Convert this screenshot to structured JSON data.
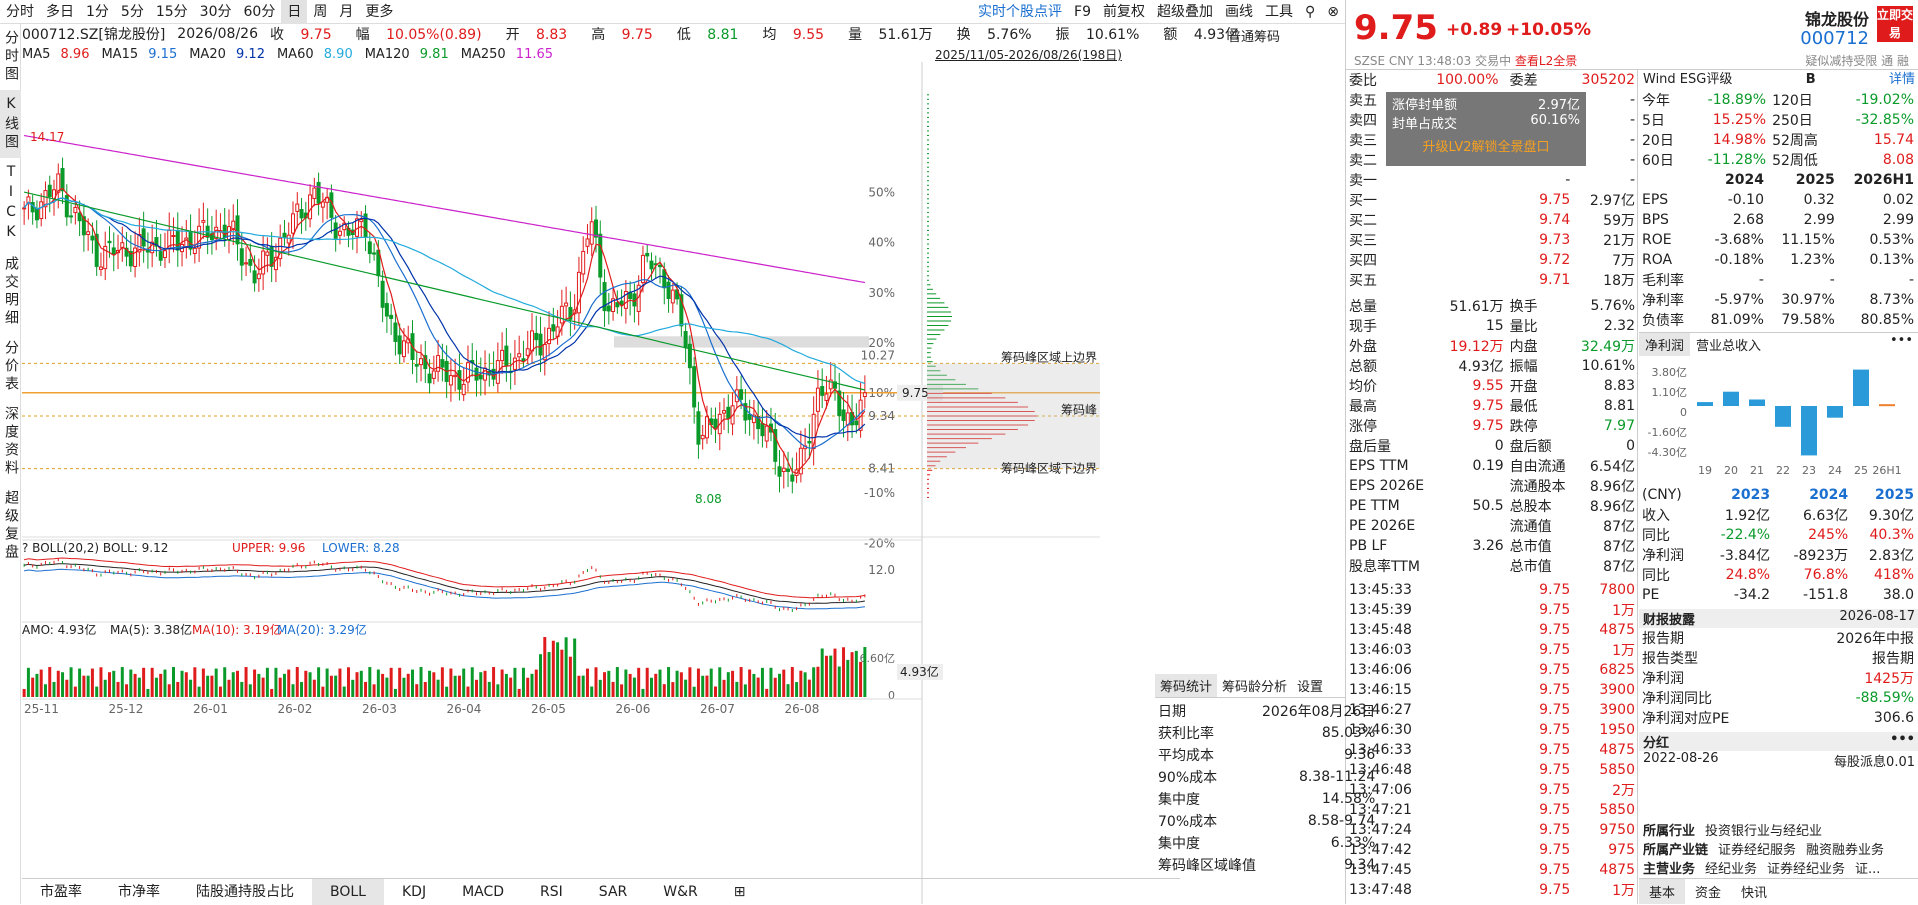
{
  "toolbar": {
    "items": [
      "分时",
      "多日",
      "1分",
      "5分",
      "15分",
      "30分",
      "60分",
      "日",
      "周",
      "月",
      "更多"
    ],
    "active": "日",
    "right": [
      "实时个股点评",
      "F9",
      "前复权",
      "超级叠加",
      "画线",
      "工具"
    ]
  },
  "lefttabs": [
    "分时图",
    "K线图",
    "TICK",
    "成交明细",
    "分价表",
    "深度资料",
    "超级复盘"
  ],
  "info": {
    "code": "000712.SZ[锦龙股份]",
    "date": "2026/08/26",
    "close_label": "收",
    "close": "9.75",
    "range_label": "幅",
    "range": "10.05%(0.89)",
    "open_label": "开",
    "open": "8.83",
    "high_label": "高",
    "high": "9.75",
    "low_label": "低",
    "low": "8.81",
    "avg_label": "均",
    "avg": "9.55",
    "vol_label": "量",
    "vol": "51.61万",
    "turn_label": "换",
    "turn": "5.76%",
    "amp_label": "振",
    "amp": "10.61%",
    "amt_label": "额",
    "amt": "4.93亿"
  },
  "ma": [
    {
      "name": "MA5",
      "value": "8.96",
      "color": "#e01b1b"
    },
    {
      "name": "MA15",
      "value": "9.15",
      "color": "#1a6fd0"
    },
    {
      "name": "MA20",
      "value": "9.12",
      "color": "#0033aa"
    },
    {
      "name": "MA60",
      "value": "8.90",
      "color": "#22aadd"
    },
    {
      "name": "MA120",
      "value": "9.81",
      "color": "#0a9a2a"
    },
    {
      "name": "MA250",
      "value": "11.65",
      "color": "#cc22cc"
    }
  ],
  "range_text": "2025/11/05-2026/08/26(198日)",
  "chip_title": "普通筹码",
  "price_axis": [
    "50%",
    "40%",
    "30%",
    "20%",
    "10%",
    "-10%",
    "-20%"
  ],
  "price_labels": {
    "current": "9.75",
    "p1027": "10.27",
    "p934": "9.34",
    "p841": "8.41",
    "high": "14.17",
    "low": "8.08"
  },
  "chip_labels": [
    "筹码峰区域上边界",
    "筹码峰",
    "筹码峰区域下边界"
  ],
  "boll": {
    "title": "BOLL(20,2)",
    "mid": "BOLL: 9.12",
    "upper": "UPPER: 9.96",
    "lower": "LOWER: 8.28",
    "axis": "12.0"
  },
  "amo": {
    "title": "AMO: 4.93亿",
    "ma5": "MA(5): 3.38亿",
    "ma10": "MA(10): 3.19亿",
    "ma20": "MA(20): 3.29亿",
    "axis_top": "6.60亿",
    "axis_cur": "4.93亿",
    "axis_zero": "0"
  },
  "xaxis": [
    "25-11",
    "25-12",
    "26-01",
    "26-02",
    "26-03",
    "26-04",
    "26-05",
    "26-06",
    "26-07",
    "26-08"
  ],
  "bottom_tabs": [
    "市盈率",
    "市净率",
    "陆股通持股占比",
    "BOLL",
    "KDJ",
    "MACD",
    "RSI",
    "SAR",
    "W&R"
  ],
  "bottom_active": "BOLL",
  "chip_tabs": [
    "筹码统计",
    "筹码龄分析",
    "设置"
  ],
  "chip_stats": [
    [
      "日期",
      "2026年08月26日"
    ],
    [
      "获利比率",
      "85.03%"
    ],
    [
      "平均成本",
      "9.36"
    ],
    [
      "90%成本",
      "8.38-11.24"
    ],
    [
      "集中度",
      "14.58%"
    ],
    [
      "70%成本",
      "8.58-9.74"
    ],
    [
      "集中度",
      "6.33%"
    ],
    [
      "筹码峰区域峰值",
      "9.34"
    ]
  ],
  "right": {
    "name": "锦龙股份",
    "code": "000712",
    "trade_btn": "立即交易",
    "price": "9.75",
    "chg": "+0.89",
    "pct": "+10.05%",
    "exch": "SZSE",
    "cur": "CNY",
    "time": "13:48:03",
    "status": "交易中",
    "l2": "查看L2全景",
    "tags": "疑似减持受限 通 融",
    "webi": "委比",
    "webi_v": "100.00%",
    "weicha": "委差",
    "weicha_v": "305202",
    "sells": [
      [
        "卖五",
        "-",
        "-"
      ],
      [
        "卖四",
        "-",
        "-"
      ],
      [
        "卖三",
        "-",
        "-"
      ],
      [
        "卖二",
        "-",
        "-"
      ],
      [
        "卖一",
        "-",
        "-"
      ]
    ],
    "limit_box": [
      [
        "涨停封单额",
        "2.97亿"
      ],
      [
        "封单占成交",
        "60.16%"
      ]
    ],
    "limit_btn": "升级LV2解锁全景盘口",
    "buys": [
      [
        "买一",
        "9.75",
        "2.97亿"
      ],
      [
        "买二",
        "9.74",
        "59万"
      ],
      [
        "买三",
        "9.73",
        "21万"
      ],
      [
        "买四",
        "9.72",
        "7万"
      ],
      [
        "买五",
        "9.71",
        "18万"
      ]
    ],
    "stats": [
      [
        "总量",
        "51.61万",
        "换手",
        "5.76%"
      ],
      [
        "现手",
        "15",
        "量比",
        "2.32"
      ],
      [
        "外盘",
        "19.12万",
        "内盘",
        "32.49万"
      ],
      [
        "总额",
        "4.93亿",
        "振幅",
        "10.61%"
      ],
      [
        "均价",
        "9.55",
        "开盘",
        "8.83"
      ],
      [
        "最高",
        "9.75",
        "最低",
        "8.81"
      ],
      [
        "涨停",
        "9.75",
        "跌停",
        "7.97"
      ],
      [
        "盘后量",
        "0",
        "盘后额",
        "0"
      ],
      [
        "EPS TTM",
        "0.19",
        "自由流通",
        "6.54亿"
      ],
      [
        "EPS 2026E",
        "",
        "流通股本",
        "8.96亿"
      ],
      [
        "PE TTM",
        "50.5",
        "总股本",
        "8.96亿"
      ],
      [
        "PE 2026E",
        "",
        "流通值",
        "87亿"
      ],
      [
        "PB LF",
        "3.26",
        "总市值",
        "87亿"
      ],
      [
        "股息率TTM",
        "",
        "总市值",
        "87亿"
      ]
    ],
    "ticks": [
      [
        "13:45:33",
        "9.75",
        "7800"
      ],
      [
        "13:45:39",
        "9.75",
        "1万"
      ],
      [
        "13:45:48",
        "9.75",
        "4875"
      ],
      [
        "13:46:03",
        "9.75",
        "1万"
      ],
      [
        "13:46:06",
        "9.75",
        "6825"
      ],
      [
        "13:46:15",
        "9.75",
        "3900"
      ],
      [
        "13:46:27",
        "9.75",
        "3900"
      ],
      [
        "13:46:30",
        "9.75",
        "1950"
      ],
      [
        "13:46:33",
        "9.75",
        "4875"
      ],
      [
        "13:46:48",
        "9.75",
        "5850"
      ],
      [
        "13:47:06",
        "9.75",
        "2万"
      ],
      [
        "13:47:21",
        "9.75",
        "5850"
      ],
      [
        "13:47:24",
        "9.75",
        "9750"
      ],
      [
        "13:47:42",
        "9.75",
        "975"
      ],
      [
        "13:47:45",
        "9.75",
        "4875"
      ],
      [
        "13:47:48",
        "9.75",
        "1万"
      ]
    ],
    "wind_label": "Wind ESG评级",
    "wind_grade": "B",
    "detail": "详情",
    "perf": [
      [
        "今年",
        "-18.89%",
        "120日",
        "-19.02%"
      ],
      [
        "5日",
        "15.25%",
        "250日",
        "-32.85%"
      ],
      [
        "20日",
        "14.98%",
        "52周高",
        "15.74"
      ],
      [
        "60日",
        "-11.28%",
        "52周低",
        "8.08"
      ]
    ],
    "fin_years": [
      "2024",
      "2025",
      "2026H1"
    ],
    "fin": [
      [
        "EPS",
        "-0.10",
        "0.32",
        "0.02"
      ],
      [
        "BPS",
        "2.68",
        "2.99",
        "2.99"
      ],
      [
        "ROE",
        "-3.68%",
        "11.15%",
        "0.53%"
      ],
      [
        "ROA",
        "-0.18%",
        "1.23%",
        "0.13%"
      ],
      [
        "毛利率",
        "-",
        "-",
        "-"
      ],
      [
        "净利率",
        "-5.97%",
        "30.97%",
        "8.73%"
      ],
      [
        "负债率",
        "81.09%",
        "79.58%",
        "80.85%"
      ]
    ],
    "mini_tabs": [
      "净利润",
      "营业总收入"
    ],
    "mini_axis": [
      "3.80亿",
      "1.10亿",
      "0",
      "-1.60亿",
      "-4.30亿"
    ],
    "mini_x": [
      "19",
      "20",
      "21",
      "22",
      "23",
      "24",
      "25",
      "26H1"
    ],
    "mini_values": [
      0.3,
      1.1,
      0.5,
      -1.6,
      -3.8,
      -0.9,
      2.8,
      0.14
    ],
    "cny_years": [
      "2023",
      "2024",
      "2025"
    ],
    "cny": [
      [
        "收入",
        "1.92亿",
        "6.63亿",
        "9.30亿"
      ],
      [
        "同比",
        "-22.4%",
        "245%",
        "40.3%"
      ],
      [
        "净利润",
        "-3.84亿",
        "-8923万",
        "2.83亿"
      ],
      [
        "同比",
        "24.8%",
        "76.8%",
        "418%"
      ],
      [
        "PE",
        "-34.2",
        "-151.8",
        "38.0"
      ]
    ],
    "report_title": "财报披露",
    "report_date": "2026-08-17",
    "report": [
      [
        "报告期",
        "2026年中报"
      ],
      [
        "报告类型",
        "报告期"
      ],
      [
        "净利润",
        "1425万"
      ],
      [
        "净利润同比",
        "-88.59%"
      ],
      [
        "净利润对应PE",
        "306.6"
      ]
    ],
    "div_title": "分红",
    "div_date": "2022-08-26",
    "div_text": "每股派息0.01",
    "industry": [
      [
        "所属行业",
        "投资银行业与经纪业"
      ],
      [
        "所属产业链",
        "证券经纪服务",
        "融资融券业务"
      ],
      [
        "主营业务",
        "经纪业务",
        "证券经纪业务",
        "证..."
      ]
    ],
    "bottom_tabs": [
      "基本",
      "资金",
      "快讯"
    ]
  }
}
